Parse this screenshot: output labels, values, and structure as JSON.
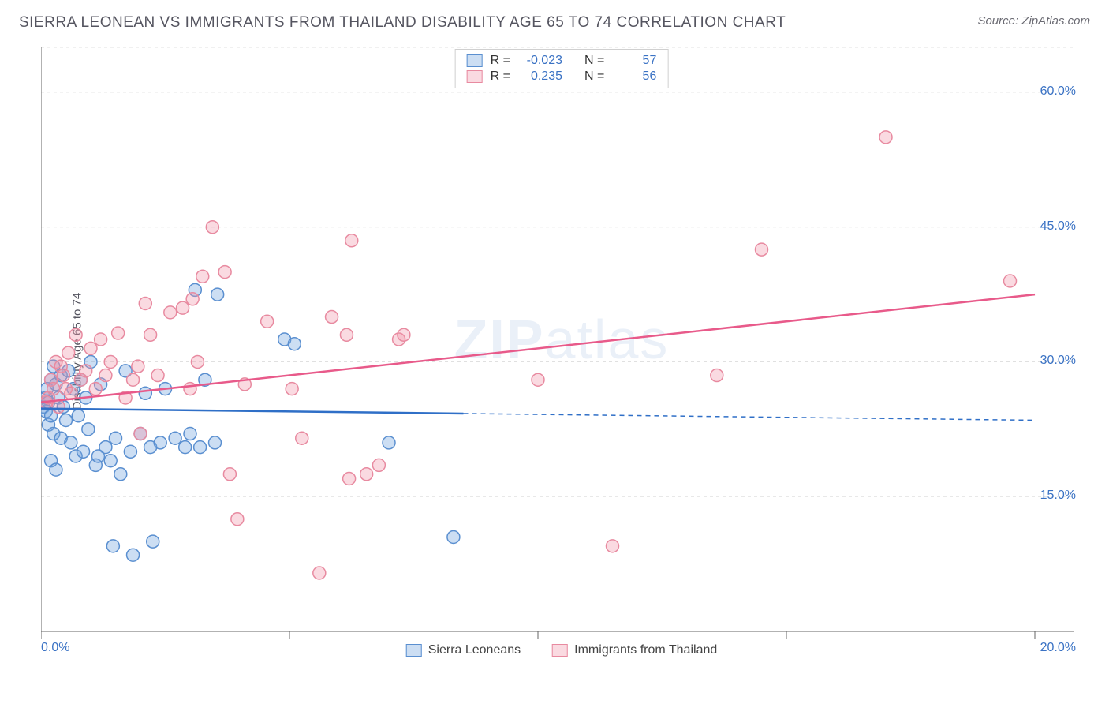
{
  "header": {
    "title": "SIERRA LEONEAN VS IMMIGRANTS FROM THAILAND DISABILITY AGE 65 TO 74 CORRELATION CHART",
    "source": "Source: ZipAtlas.com"
  },
  "chart": {
    "type": "scatter",
    "watermark": "ZIPatlas",
    "y_axis_label": "Disability Age 65 to 74",
    "xlim": [
      0,
      20
    ],
    "ylim": [
      0,
      65
    ],
    "x_ticks": [
      0,
      5,
      10,
      15,
      20
    ],
    "x_tick_labels": [
      "0.0%",
      "",
      "",
      "",
      "20.0%"
    ],
    "y_ticks": [
      15,
      30,
      45,
      60
    ],
    "y_tick_labels": [
      "15.0%",
      "30.0%",
      "45.0%",
      "60.0%"
    ],
    "grid_color": "#e0e0e0",
    "background_color": "#ffffff",
    "marker_radius": 8,
    "marker_stroke_width": 1.5,
    "series": [
      {
        "name": "Sierra Leoneans",
        "legend_label": "Sierra Leoneans",
        "fill_color": "rgba(110,160,220,0.35)",
        "stroke_color": "#5a8fd0",
        "r_value": "-0.023",
        "n_value": "57",
        "trend": {
          "x1": 0,
          "y1": 24.8,
          "x2": 20,
          "y2": 23.5,
          "solid_until_x": 8.5,
          "color": "#2f6fc7",
          "width": 2.5
        },
        "points": [
          [
            0.05,
            25
          ],
          [
            0.1,
            26
          ],
          [
            0.1,
            24.5
          ],
          [
            0.12,
            27
          ],
          [
            0.15,
            25.5
          ],
          [
            0.15,
            23
          ],
          [
            0.2,
            28
          ],
          [
            0.2,
            24
          ],
          [
            0.25,
            29.5
          ],
          [
            0.25,
            22
          ],
          [
            0.3,
            27.5
          ],
          [
            0.35,
            26
          ],
          [
            0.4,
            21.5
          ],
          [
            0.4,
            28.5
          ],
          [
            0.45,
            25
          ],
          [
            0.5,
            23.5
          ],
          [
            0.55,
            29
          ],
          [
            0.6,
            21
          ],
          [
            0.65,
            27
          ],
          [
            0.7,
            19.5
          ],
          [
            0.75,
            24
          ],
          [
            0.8,
            28
          ],
          [
            0.85,
            20
          ],
          [
            0.9,
            26
          ],
          [
            0.95,
            22.5
          ],
          [
            1.0,
            30
          ],
          [
            1.1,
            18.5
          ],
          [
            1.2,
            27.5
          ],
          [
            1.3,
            20.5
          ],
          [
            1.4,
            19
          ],
          [
            1.5,
            21.5
          ],
          [
            1.6,
            17.5
          ],
          [
            1.7,
            29
          ],
          [
            1.8,
            20
          ],
          [
            1.85,
            8.5
          ],
          [
            2.0,
            22
          ],
          [
            2.1,
            26.5
          ],
          [
            2.2,
            20.5
          ],
          [
            2.25,
            10
          ],
          [
            2.4,
            21
          ],
          [
            2.5,
            27
          ],
          [
            2.7,
            21.5
          ],
          [
            2.9,
            20.5
          ],
          [
            3.0,
            22
          ],
          [
            3.1,
            38
          ],
          [
            3.2,
            20.5
          ],
          [
            3.3,
            28
          ],
          [
            3.5,
            21
          ],
          [
            3.55,
            37.5
          ],
          [
            4.9,
            32.5
          ],
          [
            5.1,
            32
          ],
          [
            7.0,
            21
          ],
          [
            8.3,
            10.5
          ],
          [
            0.2,
            19
          ],
          [
            0.3,
            18
          ],
          [
            1.15,
            19.5
          ],
          [
            1.45,
            9.5
          ]
        ]
      },
      {
        "name": "Immigrants from Thailand",
        "legend_label": "Immigrants from Thailand",
        "fill_color": "rgba(240,150,170,0.35)",
        "stroke_color": "#e88aa0",
        "r_value": "0.235",
        "n_value": "56",
        "trend": {
          "x1": 0,
          "y1": 25.5,
          "x2": 20,
          "y2": 37.5,
          "solid_until_x": 20,
          "color": "#e85a8a",
          "width": 2.5
        },
        "points": [
          [
            0.1,
            25.5
          ],
          [
            0.15,
            26
          ],
          [
            0.2,
            28
          ],
          [
            0.25,
            27
          ],
          [
            0.3,
            30
          ],
          [
            0.35,
            25
          ],
          [
            0.4,
            29.5
          ],
          [
            0.45,
            28.5
          ],
          [
            0.5,
            27
          ],
          [
            0.55,
            31
          ],
          [
            0.6,
            26.5
          ],
          [
            0.7,
            33
          ],
          [
            0.8,
            28
          ],
          [
            0.9,
            29
          ],
          [
            1.0,
            31.5
          ],
          [
            1.1,
            27
          ],
          [
            1.2,
            32.5
          ],
          [
            1.3,
            28.5
          ],
          [
            1.4,
            30
          ],
          [
            1.55,
            33.2
          ],
          [
            1.7,
            26
          ],
          [
            1.85,
            28
          ],
          [
            1.95,
            29.5
          ],
          [
            2.0,
            22
          ],
          [
            2.1,
            36.5
          ],
          [
            2.2,
            33
          ],
          [
            2.35,
            28.5
          ],
          [
            2.6,
            35.5
          ],
          [
            2.85,
            36
          ],
          [
            3.0,
            27
          ],
          [
            3.05,
            37
          ],
          [
            3.15,
            30
          ],
          [
            3.25,
            39.5
          ],
          [
            3.45,
            45
          ],
          [
            3.7,
            40
          ],
          [
            3.95,
            12.5
          ],
          [
            4.1,
            27.5
          ],
          [
            4.55,
            34.5
          ],
          [
            5.05,
            27
          ],
          [
            5.25,
            21.5
          ],
          [
            5.85,
            35
          ],
          [
            6.15,
            33
          ],
          [
            6.2,
            17
          ],
          [
            6.25,
            43.5
          ],
          [
            6.55,
            17.5
          ],
          [
            6.8,
            18.5
          ],
          [
            7.2,
            32.5
          ],
          [
            7.3,
            33
          ],
          [
            5.6,
            6.5
          ],
          [
            10.0,
            28
          ],
          [
            11.5,
            9.5
          ],
          [
            13.6,
            28.5
          ],
          [
            14.5,
            42.5
          ],
          [
            17.0,
            55
          ],
          [
            19.5,
            39
          ],
          [
            3.8,
            17.5
          ]
        ]
      }
    ],
    "bottom_legend_labels": [
      "Sierra Leoneans",
      "Immigrants from Thailand"
    ],
    "stats_legend": {
      "r_label": "R =",
      "n_label": "N ="
    }
  }
}
